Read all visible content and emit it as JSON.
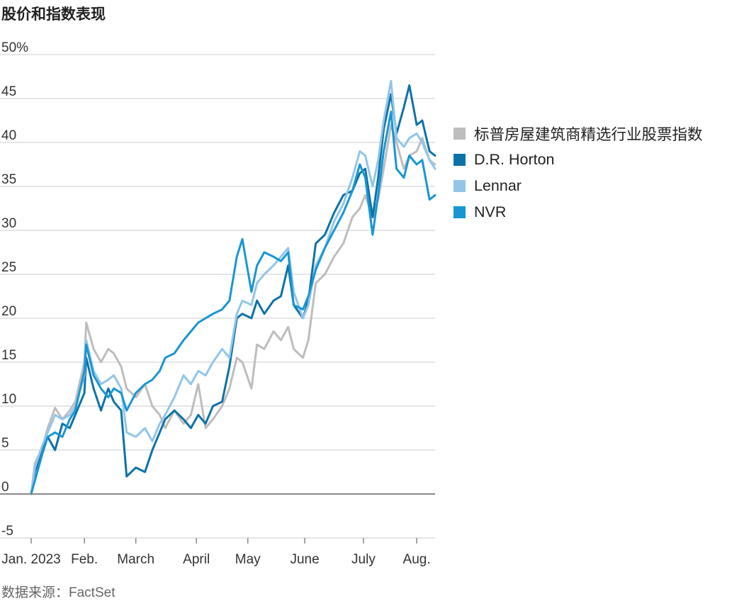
{
  "title": "股价和指数表现",
  "source": "数据来源：FactSet",
  "colors": {
    "index": "#bdbdbd",
    "dr_horton": "#0e72a8",
    "lennar": "#92c5ea",
    "nvr": "#1896d3",
    "grid": "#e6e6e6",
    "zero": "#888888"
  },
  "legend": [
    {
      "label": "标普房屋建筑商精选行业股票指数",
      "color": "#bdbdbd"
    },
    {
      "label": "D.R. Horton",
      "color": "#0e72a8"
    },
    {
      "label": "Lennar",
      "color": "#92c5ea"
    },
    {
      "label": "NVR",
      "color": "#1896d3"
    }
  ],
  "chart_data": {
    "type": "line",
    "title": "股价和指数表现",
    "y_unit": "%",
    "ylim": [
      -5,
      50
    ],
    "y_ticks": [
      {
        "value": 50,
        "label": "50%"
      },
      {
        "value": 45,
        "label": "45"
      },
      {
        "value": 40,
        "label": "40"
      },
      {
        "value": 35,
        "label": "35"
      },
      {
        "value": 30,
        "label": "30"
      },
      {
        "value": 25,
        "label": "25"
      },
      {
        "value": 20,
        "label": "20"
      },
      {
        "value": 15,
        "label": "15"
      },
      {
        "value": 10,
        "label": "10"
      },
      {
        "value": 5,
        "label": "5"
      },
      {
        "value": 0,
        "label": "0"
      },
      {
        "value": -5,
        "label": "-5"
      }
    ],
    "x_ticks": [
      {
        "date": "2023-01-03",
        "label": "Jan. 2023"
      },
      {
        "date": "2023-02-01",
        "label": "Feb."
      },
      {
        "date": "2023-03-01",
        "label": "March"
      },
      {
        "date": "2023-04-03",
        "label": "April"
      },
      {
        "date": "2023-05-01",
        "label": "May"
      },
      {
        "date": "2023-06-01",
        "label": "June"
      },
      {
        "date": "2023-07-03",
        "label": "July"
      },
      {
        "date": "2023-08-01",
        "label": "Aug."
      }
    ],
    "xlim": [
      "2023-01-03",
      "2023-08-11"
    ],
    "grid": true,
    "legend_position": "right",
    "series": [
      {
        "name": "标普房屋建筑商精选行业股票指数",
        "color": "#bdbdbd",
        "points": [
          [
            "2023-01-03",
            0
          ],
          [
            "2023-01-05",
            3.5
          ],
          [
            "2023-01-09",
            5.2
          ],
          [
            "2023-01-12",
            7.5
          ],
          [
            "2023-01-16",
            9.8
          ],
          [
            "2023-01-20",
            8.5
          ],
          [
            "2023-01-24",
            9.5
          ],
          [
            "2023-01-27",
            10.5
          ],
          [
            "2023-02-01",
            15
          ],
          [
            "2023-02-02",
            19.5
          ],
          [
            "2023-02-06",
            16.5
          ],
          [
            "2023-02-10",
            15
          ],
          [
            "2023-02-14",
            16.5
          ],
          [
            "2023-02-17",
            16
          ],
          [
            "2023-02-21",
            14.5
          ],
          [
            "2023-02-24",
            12
          ],
          [
            "2023-03-01",
            11
          ],
          [
            "2023-03-06",
            12.5
          ],
          [
            "2023-03-10",
            10
          ],
          [
            "2023-03-14",
            9
          ],
          [
            "2023-03-17",
            7.5
          ],
          [
            "2023-03-22",
            9.5
          ],
          [
            "2023-03-27",
            8
          ],
          [
            "2023-03-31",
            9
          ],
          [
            "2023-04-04",
            12.5
          ],
          [
            "2023-04-08",
            7.5
          ],
          [
            "2023-04-12",
            8.5
          ],
          [
            "2023-04-17",
            10
          ],
          [
            "2023-04-21",
            12
          ],
          [
            "2023-04-25",
            15.5
          ],
          [
            "2023-04-28",
            15
          ],
          [
            "2023-05-03",
            12
          ],
          [
            "2023-05-06",
            17
          ],
          [
            "2023-05-10",
            16.5
          ],
          [
            "2023-05-15",
            18.5
          ],
          [
            "2023-05-19",
            17.5
          ],
          [
            "2023-05-23",
            19
          ],
          [
            "2023-05-26",
            16.5
          ],
          [
            "2023-05-31",
            15.5
          ],
          [
            "2023-06-03",
            17.5
          ],
          [
            "2023-06-07",
            24
          ],
          [
            "2023-06-12",
            25
          ],
          [
            "2023-06-17",
            27
          ],
          [
            "2023-06-22",
            28.5
          ],
          [
            "2023-06-27",
            31.5
          ],
          [
            "2023-07-01",
            32.5
          ],
          [
            "2023-07-04",
            34
          ],
          [
            "2023-07-08",
            31.5
          ],
          [
            "2023-07-11",
            33.5
          ],
          [
            "2023-07-14",
            37
          ],
          [
            "2023-07-18",
            42
          ],
          [
            "2023-07-21",
            40
          ],
          [
            "2023-07-25",
            37
          ],
          [
            "2023-07-28",
            38.5
          ],
          [
            "2023-08-01",
            39
          ],
          [
            "2023-08-04",
            40.5
          ],
          [
            "2023-08-08",
            38
          ],
          [
            "2023-08-11",
            37.5
          ]
        ]
      },
      {
        "name": "D.R. Horton",
        "color": "#0e72a8",
        "points": [
          [
            "2023-01-03",
            0
          ],
          [
            "2023-01-05",
            2.5
          ],
          [
            "2023-01-09",
            5
          ],
          [
            "2023-01-12",
            6.5
          ],
          [
            "2023-01-16",
            5
          ],
          [
            "2023-01-20",
            8
          ],
          [
            "2023-01-24",
            7.5
          ],
          [
            "2023-01-27",
            9
          ],
          [
            "2023-02-01",
            11.5
          ],
          [
            "2023-02-02",
            15.5
          ],
          [
            "2023-02-06",
            12
          ],
          [
            "2023-02-10",
            9.5
          ],
          [
            "2023-02-14",
            12
          ],
          [
            "2023-02-17",
            10.5
          ],
          [
            "2023-02-21",
            9.5
          ],
          [
            "2023-02-24",
            2
          ],
          [
            "2023-03-01",
            3
          ],
          [
            "2023-03-06",
            2.5
          ],
          [
            "2023-03-10",
            5
          ],
          [
            "2023-03-14",
            7
          ],
          [
            "2023-03-17",
            8.5
          ],
          [
            "2023-03-22",
            9.5
          ],
          [
            "2023-03-27",
            8.5
          ],
          [
            "2023-03-31",
            7.5
          ],
          [
            "2023-04-04",
            9
          ],
          [
            "2023-04-08",
            8
          ],
          [
            "2023-04-12",
            10
          ],
          [
            "2023-04-17",
            10.5
          ],
          [
            "2023-04-21",
            14.5
          ],
          [
            "2023-04-25",
            20
          ],
          [
            "2023-04-28",
            20.5
          ],
          [
            "2023-05-03",
            20
          ],
          [
            "2023-05-06",
            22
          ],
          [
            "2023-05-10",
            20.5
          ],
          [
            "2023-05-15",
            22
          ],
          [
            "2023-05-19",
            22.5
          ],
          [
            "2023-05-23",
            26
          ],
          [
            "2023-05-26",
            21.5
          ],
          [
            "2023-05-31",
            20
          ],
          [
            "2023-06-03",
            22
          ],
          [
            "2023-06-07",
            28.5
          ],
          [
            "2023-06-12",
            29.5
          ],
          [
            "2023-06-17",
            32
          ],
          [
            "2023-06-22",
            34
          ],
          [
            "2023-06-27",
            34.5
          ],
          [
            "2023-07-01",
            36.5
          ],
          [
            "2023-07-04",
            37
          ],
          [
            "2023-07-08",
            31.5
          ],
          [
            "2023-07-11",
            36
          ],
          [
            "2023-07-14",
            41.5
          ],
          [
            "2023-07-18",
            45.5
          ],
          [
            "2023-07-21",
            41
          ],
          [
            "2023-07-25",
            44
          ],
          [
            "2023-07-28",
            46.5
          ],
          [
            "2023-08-01",
            42
          ],
          [
            "2023-08-04",
            42.5
          ],
          [
            "2023-08-08",
            39
          ],
          [
            "2023-08-11",
            38.5
          ]
        ]
      },
      {
        "name": "Lennar",
        "color": "#92c5ea",
        "points": [
          [
            "2023-01-03",
            0
          ],
          [
            "2023-01-05",
            3
          ],
          [
            "2023-01-09",
            5.5
          ],
          [
            "2023-01-12",
            7
          ],
          [
            "2023-01-16",
            9
          ],
          [
            "2023-01-20",
            8.5
          ],
          [
            "2023-01-24",
            9
          ],
          [
            "2023-01-27",
            10
          ],
          [
            "2023-02-01",
            13.5
          ],
          [
            "2023-02-02",
            17.5
          ],
          [
            "2023-02-06",
            14
          ],
          [
            "2023-02-10",
            12.5
          ],
          [
            "2023-02-14",
            13
          ],
          [
            "2023-02-17",
            13.5
          ],
          [
            "2023-02-21",
            12
          ],
          [
            "2023-02-24",
            7
          ],
          [
            "2023-03-01",
            6.5
          ],
          [
            "2023-03-06",
            7.5
          ],
          [
            "2023-03-10",
            6
          ],
          [
            "2023-03-14",
            8
          ],
          [
            "2023-03-17",
            9
          ],
          [
            "2023-03-22",
            11
          ],
          [
            "2023-03-27",
            13.5
          ],
          [
            "2023-03-31",
            12.5
          ],
          [
            "2023-04-04",
            14
          ],
          [
            "2023-04-08",
            13.5
          ],
          [
            "2023-04-12",
            15
          ],
          [
            "2023-04-17",
            16.5
          ],
          [
            "2023-04-21",
            15.5
          ],
          [
            "2023-04-25",
            20.5
          ],
          [
            "2023-04-28",
            22
          ],
          [
            "2023-05-03",
            21.5
          ],
          [
            "2023-05-06",
            24
          ],
          [
            "2023-05-10",
            25
          ],
          [
            "2023-05-15",
            26
          ],
          [
            "2023-05-19",
            27
          ],
          [
            "2023-05-23",
            28
          ],
          [
            "2023-05-26",
            23
          ],
          [
            "2023-05-31",
            20
          ],
          [
            "2023-06-03",
            21.5
          ],
          [
            "2023-06-07",
            26
          ],
          [
            "2023-06-12",
            28
          ],
          [
            "2023-06-17",
            31
          ],
          [
            "2023-06-22",
            33
          ],
          [
            "2023-06-27",
            36
          ],
          [
            "2023-07-01",
            39
          ],
          [
            "2023-07-04",
            38.5
          ],
          [
            "2023-07-08",
            35
          ],
          [
            "2023-07-11",
            38
          ],
          [
            "2023-07-14",
            42.5
          ],
          [
            "2023-07-18",
            47
          ],
          [
            "2023-07-21",
            40.5
          ],
          [
            "2023-07-25",
            39.5
          ],
          [
            "2023-07-28",
            40.5
          ],
          [
            "2023-08-01",
            41
          ],
          [
            "2023-08-04",
            40
          ],
          [
            "2023-08-08",
            38
          ],
          [
            "2023-08-11",
            37
          ]
        ]
      },
      {
        "name": "NVR",
        "color": "#1896d3",
        "points": [
          [
            "2023-01-03",
            0
          ],
          [
            "2023-01-05",
            1.5
          ],
          [
            "2023-01-09",
            4.5
          ],
          [
            "2023-01-12",
            6.5
          ],
          [
            "2023-01-16",
            7
          ],
          [
            "2023-01-20",
            6.5
          ],
          [
            "2023-01-24",
            8.5
          ],
          [
            "2023-01-27",
            9.5
          ],
          [
            "2023-02-01",
            14
          ],
          [
            "2023-02-02",
            17
          ],
          [
            "2023-02-06",
            13.5
          ],
          [
            "2023-02-10",
            12
          ],
          [
            "2023-02-14",
            11
          ],
          [
            "2023-02-17",
            12
          ],
          [
            "2023-02-21",
            11.5
          ],
          [
            "2023-02-24",
            9.5
          ],
          [
            "2023-03-01",
            11.5
          ],
          [
            "2023-03-06",
            12.5
          ],
          [
            "2023-03-10",
            13
          ],
          [
            "2023-03-14",
            14
          ],
          [
            "2023-03-17",
            15.5
          ],
          [
            "2023-03-22",
            16
          ],
          [
            "2023-03-27",
            17.5
          ],
          [
            "2023-03-31",
            18.5
          ],
          [
            "2023-04-04",
            19.5
          ],
          [
            "2023-04-08",
            20
          ],
          [
            "2023-04-12",
            20.5
          ],
          [
            "2023-04-17",
            21
          ],
          [
            "2023-04-21",
            22
          ],
          [
            "2023-04-25",
            27
          ],
          [
            "2023-04-28",
            29
          ],
          [
            "2023-05-03",
            23
          ],
          [
            "2023-05-06",
            26
          ],
          [
            "2023-05-10",
            27.5
          ],
          [
            "2023-05-15",
            27
          ],
          [
            "2023-05-19",
            26.5
          ],
          [
            "2023-05-23",
            27.5
          ],
          [
            "2023-05-26",
            21.5
          ],
          [
            "2023-05-31",
            21
          ],
          [
            "2023-06-03",
            22.5
          ],
          [
            "2023-06-07",
            25.5
          ],
          [
            "2023-06-12",
            28
          ],
          [
            "2023-06-17",
            30
          ],
          [
            "2023-06-22",
            32
          ],
          [
            "2023-06-27",
            34.5
          ],
          [
            "2023-07-01",
            37.5
          ],
          [
            "2023-07-04",
            36
          ],
          [
            "2023-07-08",
            29.5
          ],
          [
            "2023-07-11",
            34
          ],
          [
            "2023-07-14",
            39
          ],
          [
            "2023-07-18",
            43.5
          ],
          [
            "2023-07-21",
            37
          ],
          [
            "2023-07-25",
            36
          ],
          [
            "2023-07-28",
            38.5
          ],
          [
            "2023-08-01",
            37.5
          ],
          [
            "2023-08-04",
            38
          ],
          [
            "2023-08-08",
            33.5
          ],
          [
            "2023-08-11",
            34
          ]
        ]
      }
    ]
  }
}
